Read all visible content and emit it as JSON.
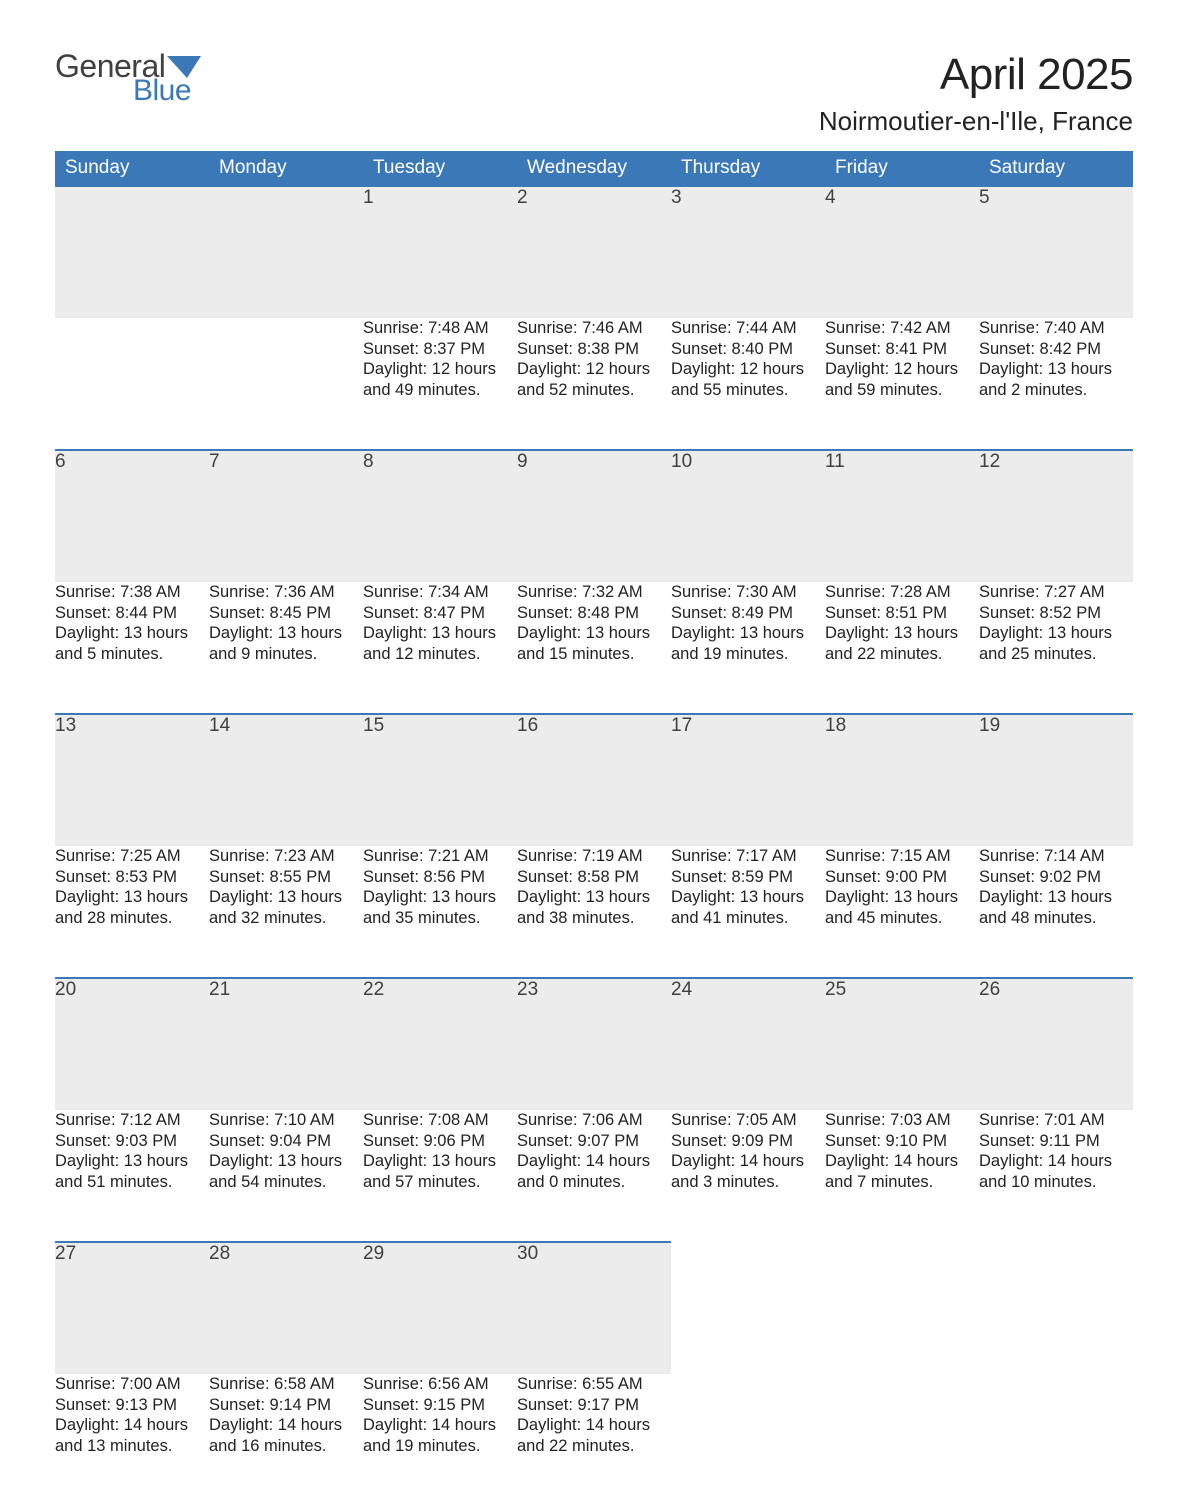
{
  "brand": {
    "word1": "General",
    "word2": "Blue",
    "accent_color": "#3a78b8",
    "text_color": "#404040"
  },
  "title": {
    "month": "April 2025",
    "location": "Noirmoutier-en-l'Ile, France"
  },
  "colors": {
    "header_bg": "#3a78b8",
    "header_text": "#ffffff",
    "daynum_bg": "#ececec",
    "border_top": "#3a78b8",
    "body_text": "#222222"
  },
  "days_of_week": [
    "Sunday",
    "Monday",
    "Tuesday",
    "Wednesday",
    "Thursday",
    "Friday",
    "Saturday"
  ],
  "weeks": [
    [
      null,
      null,
      {
        "n": "1",
        "sunrise": "Sunrise: 7:48 AM",
        "sunset": "Sunset: 8:37 PM",
        "d1": "Daylight: 12 hours",
        "d2": "and 49 minutes."
      },
      {
        "n": "2",
        "sunrise": "Sunrise: 7:46 AM",
        "sunset": "Sunset: 8:38 PM",
        "d1": "Daylight: 12 hours",
        "d2": "and 52 minutes."
      },
      {
        "n": "3",
        "sunrise": "Sunrise: 7:44 AM",
        "sunset": "Sunset: 8:40 PM",
        "d1": "Daylight: 12 hours",
        "d2": "and 55 minutes."
      },
      {
        "n": "4",
        "sunrise": "Sunrise: 7:42 AM",
        "sunset": "Sunset: 8:41 PM",
        "d1": "Daylight: 12 hours",
        "d2": "and 59 minutes."
      },
      {
        "n": "5",
        "sunrise": "Sunrise: 7:40 AM",
        "sunset": "Sunset: 8:42 PM",
        "d1": "Daylight: 13 hours",
        "d2": "and 2 minutes."
      }
    ],
    [
      {
        "n": "6",
        "sunrise": "Sunrise: 7:38 AM",
        "sunset": "Sunset: 8:44 PM",
        "d1": "Daylight: 13 hours",
        "d2": "and 5 minutes."
      },
      {
        "n": "7",
        "sunrise": "Sunrise: 7:36 AM",
        "sunset": "Sunset: 8:45 PM",
        "d1": "Daylight: 13 hours",
        "d2": "and 9 minutes."
      },
      {
        "n": "8",
        "sunrise": "Sunrise: 7:34 AM",
        "sunset": "Sunset: 8:47 PM",
        "d1": "Daylight: 13 hours",
        "d2": "and 12 minutes."
      },
      {
        "n": "9",
        "sunrise": "Sunrise: 7:32 AM",
        "sunset": "Sunset: 8:48 PM",
        "d1": "Daylight: 13 hours",
        "d2": "and 15 minutes."
      },
      {
        "n": "10",
        "sunrise": "Sunrise: 7:30 AM",
        "sunset": "Sunset: 8:49 PM",
        "d1": "Daylight: 13 hours",
        "d2": "and 19 minutes."
      },
      {
        "n": "11",
        "sunrise": "Sunrise: 7:28 AM",
        "sunset": "Sunset: 8:51 PM",
        "d1": "Daylight: 13 hours",
        "d2": "and 22 minutes."
      },
      {
        "n": "12",
        "sunrise": "Sunrise: 7:27 AM",
        "sunset": "Sunset: 8:52 PM",
        "d1": "Daylight: 13 hours",
        "d2": "and 25 minutes."
      }
    ],
    [
      {
        "n": "13",
        "sunrise": "Sunrise: 7:25 AM",
        "sunset": "Sunset: 8:53 PM",
        "d1": "Daylight: 13 hours",
        "d2": "and 28 minutes."
      },
      {
        "n": "14",
        "sunrise": "Sunrise: 7:23 AM",
        "sunset": "Sunset: 8:55 PM",
        "d1": "Daylight: 13 hours",
        "d2": "and 32 minutes."
      },
      {
        "n": "15",
        "sunrise": "Sunrise: 7:21 AM",
        "sunset": "Sunset: 8:56 PM",
        "d1": "Daylight: 13 hours",
        "d2": "and 35 minutes."
      },
      {
        "n": "16",
        "sunrise": "Sunrise: 7:19 AM",
        "sunset": "Sunset: 8:58 PM",
        "d1": "Daylight: 13 hours",
        "d2": "and 38 minutes."
      },
      {
        "n": "17",
        "sunrise": "Sunrise: 7:17 AM",
        "sunset": "Sunset: 8:59 PM",
        "d1": "Daylight: 13 hours",
        "d2": "and 41 minutes."
      },
      {
        "n": "18",
        "sunrise": "Sunrise: 7:15 AM",
        "sunset": "Sunset: 9:00 PM",
        "d1": "Daylight: 13 hours",
        "d2": "and 45 minutes."
      },
      {
        "n": "19",
        "sunrise": "Sunrise: 7:14 AM",
        "sunset": "Sunset: 9:02 PM",
        "d1": "Daylight: 13 hours",
        "d2": "and 48 minutes."
      }
    ],
    [
      {
        "n": "20",
        "sunrise": "Sunrise: 7:12 AM",
        "sunset": "Sunset: 9:03 PM",
        "d1": "Daylight: 13 hours",
        "d2": "and 51 minutes."
      },
      {
        "n": "21",
        "sunrise": "Sunrise: 7:10 AM",
        "sunset": "Sunset: 9:04 PM",
        "d1": "Daylight: 13 hours",
        "d2": "and 54 minutes."
      },
      {
        "n": "22",
        "sunrise": "Sunrise: 7:08 AM",
        "sunset": "Sunset: 9:06 PM",
        "d1": "Daylight: 13 hours",
        "d2": "and 57 minutes."
      },
      {
        "n": "23",
        "sunrise": "Sunrise: 7:06 AM",
        "sunset": "Sunset: 9:07 PM",
        "d1": "Daylight: 14 hours",
        "d2": "and 0 minutes."
      },
      {
        "n": "24",
        "sunrise": "Sunrise: 7:05 AM",
        "sunset": "Sunset: 9:09 PM",
        "d1": "Daylight: 14 hours",
        "d2": "and 3 minutes."
      },
      {
        "n": "25",
        "sunrise": "Sunrise: 7:03 AM",
        "sunset": "Sunset: 9:10 PM",
        "d1": "Daylight: 14 hours",
        "d2": "and 7 minutes."
      },
      {
        "n": "26",
        "sunrise": "Sunrise: 7:01 AM",
        "sunset": "Sunset: 9:11 PM",
        "d1": "Daylight: 14 hours",
        "d2": "and 10 minutes."
      }
    ],
    [
      {
        "n": "27",
        "sunrise": "Sunrise: 7:00 AM",
        "sunset": "Sunset: 9:13 PM",
        "d1": "Daylight: 14 hours",
        "d2": "and 13 minutes."
      },
      {
        "n": "28",
        "sunrise": "Sunrise: 6:58 AM",
        "sunset": "Sunset: 9:14 PM",
        "d1": "Daylight: 14 hours",
        "d2": "and 16 minutes."
      },
      {
        "n": "29",
        "sunrise": "Sunrise: 6:56 AM",
        "sunset": "Sunset: 9:15 PM",
        "d1": "Daylight: 14 hours",
        "d2": "and 19 minutes."
      },
      {
        "n": "30",
        "sunrise": "Sunrise: 6:55 AM",
        "sunset": "Sunset: 9:17 PM",
        "d1": "Daylight: 14 hours",
        "d2": "and 22 minutes."
      },
      null,
      null,
      null
    ]
  ]
}
